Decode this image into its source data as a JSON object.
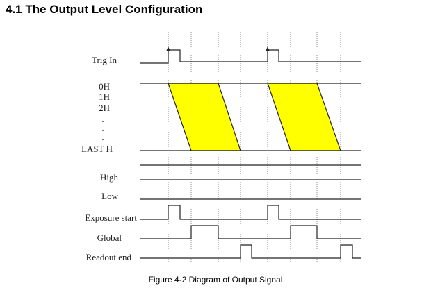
{
  "heading": "4.1 The Output Level Configuration",
  "caption": "Figure 4-2 Diagram of Output Signal",
  "labels": {
    "trig_in": "Trig In",
    "row_0h": "0H",
    "row_1h": "1H",
    "row_2h": "2H",
    "ellipsis": ".",
    "last_h": "LAST H",
    "high": "High",
    "low": "Low",
    "exposure_start": "Exposure start",
    "global": "Global",
    "readout_end": "Readout end"
  },
  "colors": {
    "readout_fill": "#ffff00",
    "line": "#222222",
    "gridline": "#888888"
  }
}
